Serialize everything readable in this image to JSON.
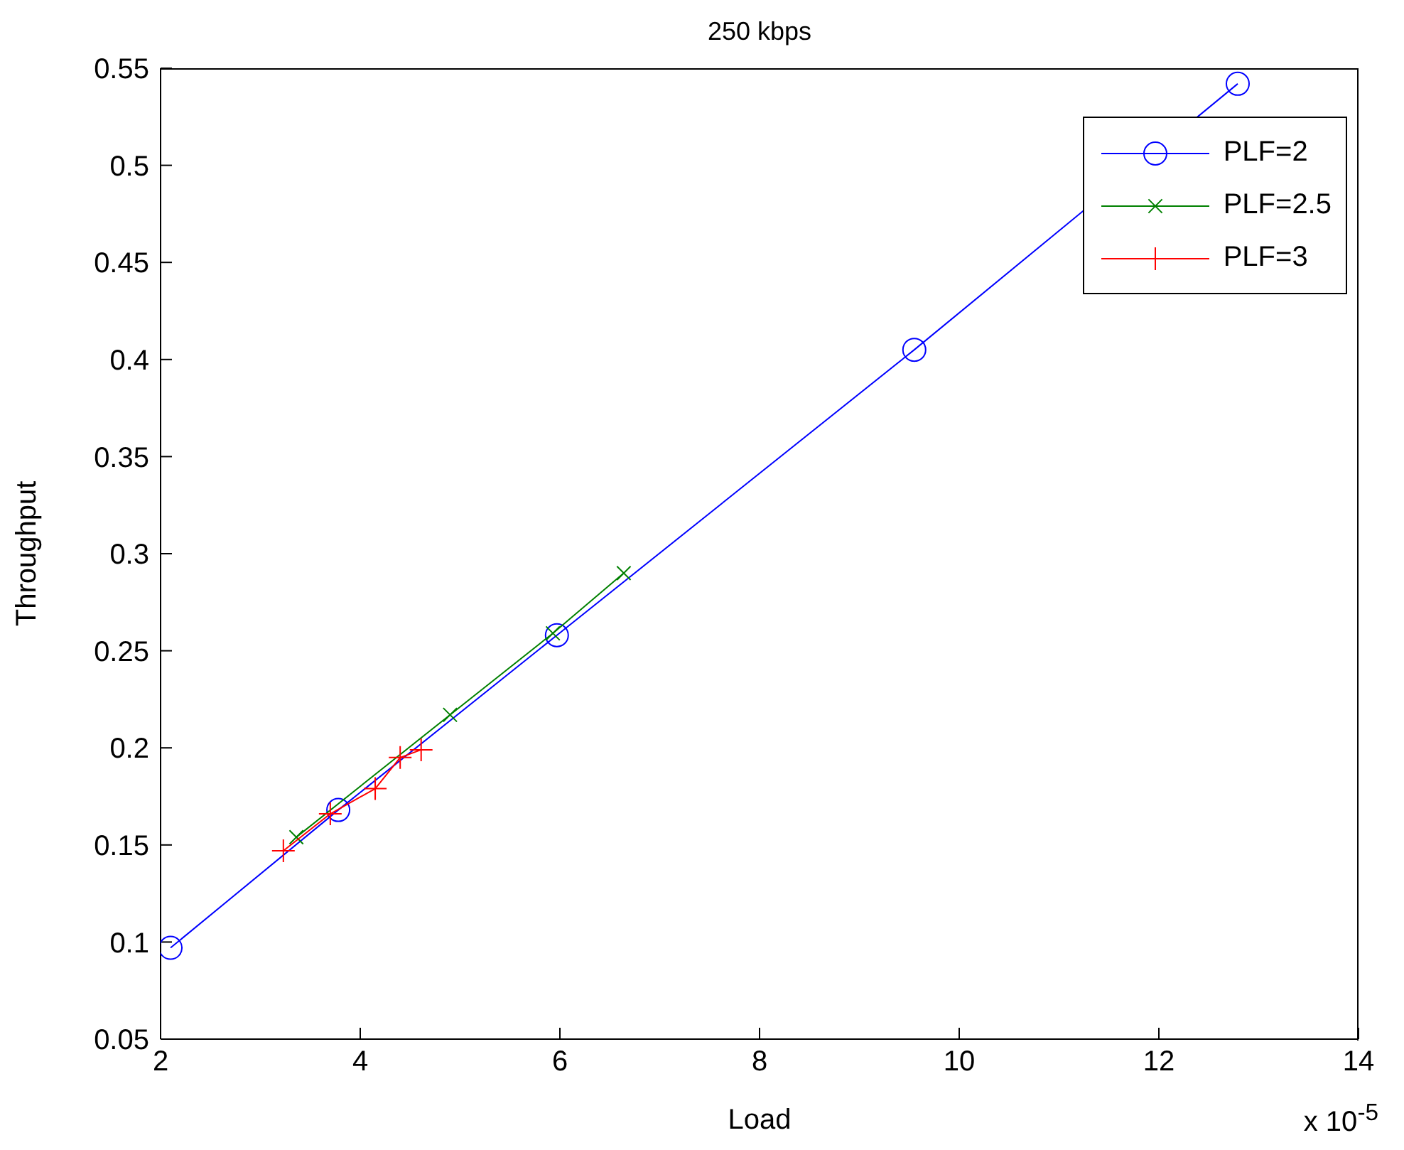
{
  "chart_data": {
    "type": "line",
    "title": "250 kbps",
    "xlabel": "Load",
    "ylabel": "Throughput",
    "annotations": [
      "x 10$^{-5}$"
    ],
    "xlim": [
      2,
      14
    ],
    "xticks": [
      2,
      4,
      6,
      8,
      10,
      12,
      14
    ],
    "ylim": [
      0.05,
      0.55
    ],
    "yticks": [
      0.05,
      0.1,
      0.15,
      0.2,
      0.25,
      0.3,
      0.35,
      0.4,
      0.45,
      0.5,
      0.55
    ],
    "grid": false,
    "legend": "top right",
    "line_style": "solid",
    "series": [
      {
        "name": "PLF=2",
        "color": "#0000ff",
        "marker": "circle",
        "x": [
          2.1,
          3.78,
          5.97,
          9.55,
          12.79
        ],
        "values": [
          0.097,
          0.168,
          0.258,
          0.405,
          0.542
        ]
      },
      {
        "name": "PLF=2.5",
        "color": "#008000",
        "marker": "x",
        "x": [
          3.36,
          4.9,
          5.93,
          6.64
        ],
        "values": [
          0.154,
          0.217,
          0.259,
          0.29
        ]
      },
      {
        "name": "PLF=3",
        "color": "#ff0000",
        "marker": "cross",
        "x": [
          3.23,
          3.7,
          4.15,
          4.4,
          4.61
        ],
        "values": [
          0.147,
          0.166,
          0.179,
          0.195,
          0.199
        ]
      }
    ]
  }
}
